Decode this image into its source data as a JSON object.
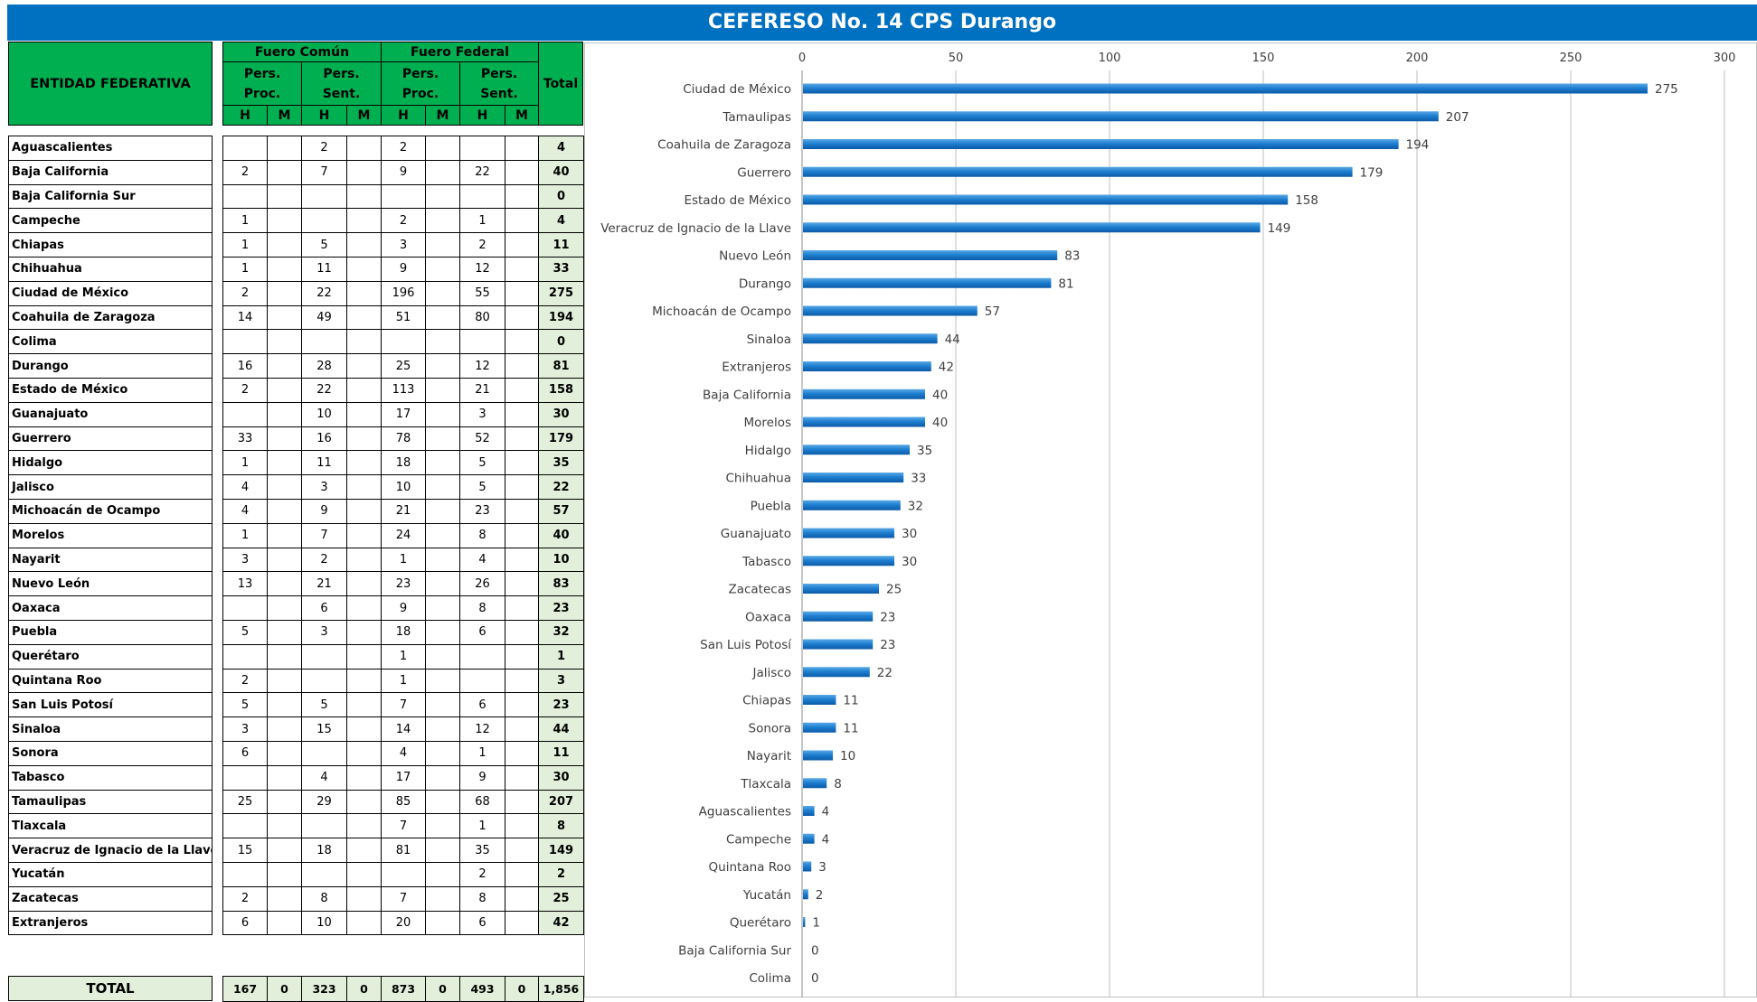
{
  "title": "CEFERESO No. 14 CPS Durango",
  "table": {
    "entity_header": "ENTIDAD FEDERATIVA",
    "group_headers": [
      "Fuero Común",
      "Fuero Federal"
    ],
    "sub_headers": [
      "Pers. Proc.",
      "Pers. Sent.",
      "Pers. Proc.",
      "Pers. Sent."
    ],
    "sex_headers": [
      "H",
      "M",
      "H",
      "M",
      "H",
      "M",
      "H",
      "M"
    ],
    "total_header": "Total",
    "total_label": "TOTAL",
    "rows": [
      {
        "name": "Aguascalientes",
        "v": [
          "",
          "",
          "2",
          "",
          "2",
          "",
          "",
          ""
        ],
        "total": "4"
      },
      {
        "name": "Baja California",
        "v": [
          "2",
          "",
          "7",
          "",
          "9",
          "",
          "22",
          ""
        ],
        "total": "40"
      },
      {
        "name": "Baja California Sur",
        "v": [
          "",
          "",
          "",
          "",
          "",
          "",
          "",
          ""
        ],
        "total": "0"
      },
      {
        "name": "Campeche",
        "v": [
          "1",
          "",
          "",
          "",
          "2",
          "",
          "1",
          ""
        ],
        "total": "4"
      },
      {
        "name": "Chiapas",
        "v": [
          "1",
          "",
          "5",
          "",
          "3",
          "",
          "2",
          ""
        ],
        "total": "11"
      },
      {
        "name": "Chihuahua",
        "v": [
          "1",
          "",
          "11",
          "",
          "9",
          "",
          "12",
          ""
        ],
        "total": "33"
      },
      {
        "name": "Ciudad de México",
        "v": [
          "2",
          "",
          "22",
          "",
          "196",
          "",
          "55",
          ""
        ],
        "total": "275"
      },
      {
        "name": "Coahuila de Zaragoza",
        "v": [
          "14",
          "",
          "49",
          "",
          "51",
          "",
          "80",
          ""
        ],
        "total": "194"
      },
      {
        "name": "Colima",
        "v": [
          "",
          "",
          "",
          "",
          "",
          "",
          "",
          ""
        ],
        "total": "0"
      },
      {
        "name": "Durango",
        "v": [
          "16",
          "",
          "28",
          "",
          "25",
          "",
          "12",
          ""
        ],
        "total": "81"
      },
      {
        "name": "Estado de México",
        "v": [
          "2",
          "",
          "22",
          "",
          "113",
          "",
          "21",
          ""
        ],
        "total": "158"
      },
      {
        "name": "Guanajuato",
        "v": [
          "",
          "",
          "10",
          "",
          "17",
          "",
          "3",
          ""
        ],
        "total": "30"
      },
      {
        "name": "Guerrero",
        "v": [
          "33",
          "",
          "16",
          "",
          "78",
          "",
          "52",
          ""
        ],
        "total": "179"
      },
      {
        "name": "Hidalgo",
        "v": [
          "1",
          "",
          "11",
          "",
          "18",
          "",
          "5",
          ""
        ],
        "total": "35"
      },
      {
        "name": "Jalisco",
        "v": [
          "4",
          "",
          "3",
          "",
          "10",
          "",
          "5",
          ""
        ],
        "total": "22"
      },
      {
        "name": "Michoacán de Ocampo",
        "v": [
          "4",
          "",
          "9",
          "",
          "21",
          "",
          "23",
          ""
        ],
        "total": "57"
      },
      {
        "name": "Morelos",
        "v": [
          "1",
          "",
          "7",
          "",
          "24",
          "",
          "8",
          ""
        ],
        "total": "40"
      },
      {
        "name": "Nayarit",
        "v": [
          "3",
          "",
          "2",
          "",
          "1",
          "",
          "4",
          ""
        ],
        "total": "10"
      },
      {
        "name": "Nuevo León",
        "v": [
          "13",
          "",
          "21",
          "",
          "23",
          "",
          "26",
          ""
        ],
        "total": "83"
      },
      {
        "name": "Oaxaca",
        "v": [
          "",
          "",
          "6",
          "",
          "9",
          "",
          "8",
          ""
        ],
        "total": "23"
      },
      {
        "name": "Puebla",
        "v": [
          "5",
          "",
          "3",
          "",
          "18",
          "",
          "6",
          ""
        ],
        "total": "32"
      },
      {
        "name": "Querétaro",
        "v": [
          "",
          "",
          "",
          "",
          "1",
          "",
          "",
          ""
        ],
        "total": "1"
      },
      {
        "name": "Quintana Roo",
        "v": [
          "2",
          "",
          "",
          "",
          "1",
          "",
          "",
          ""
        ],
        "total": "3"
      },
      {
        "name": "San Luis Potosí",
        "v": [
          "5",
          "",
          "5",
          "",
          "7",
          "",
          "6",
          ""
        ],
        "total": "23"
      },
      {
        "name": "Sinaloa",
        "v": [
          "3",
          "",
          "15",
          "",
          "14",
          "",
          "12",
          ""
        ],
        "total": "44"
      },
      {
        "name": "Sonora",
        "v": [
          "6",
          "",
          "",
          "",
          "4",
          "",
          "1",
          ""
        ],
        "total": "11"
      },
      {
        "name": "Tabasco",
        "v": [
          "",
          "",
          "4",
          "",
          "17",
          "",
          "9",
          ""
        ],
        "total": "30"
      },
      {
        "name": "Tamaulipas",
        "v": [
          "25",
          "",
          "29",
          "",
          "85",
          "",
          "68",
          ""
        ],
        "total": "207"
      },
      {
        "name": "Tlaxcala",
        "v": [
          "",
          "",
          "",
          "",
          "7",
          "",
          "1",
          ""
        ],
        "total": "8"
      },
      {
        "name": "Veracruz de Ignacio de la Llave",
        "v": [
          "15",
          "",
          "18",
          "",
          "81",
          "",
          "35",
          ""
        ],
        "total": "149"
      },
      {
        "name": "Yucatán",
        "v": [
          "",
          "",
          "",
          "",
          "",
          "",
          "2",
          ""
        ],
        "total": "2"
      },
      {
        "name": "Zacatecas",
        "v": [
          "2",
          "",
          "8",
          "",
          "7",
          "",
          "8",
          ""
        ],
        "total": "25"
      },
      {
        "name": "Extranjeros",
        "v": [
          "6",
          "",
          "10",
          "",
          "20",
          "",
          "6",
          ""
        ],
        "total": "42"
      }
    ],
    "totals": [
      "167",
      "0",
      "323",
      "0",
      "873",
      "0",
      "493",
      "0",
      "1,856"
    ]
  },
  "chart_data": {
    "type": "bar",
    "orientation": "horizontal",
    "bar_color": "#0070c0",
    "xlim": [
      0,
      300
    ],
    "x_ticks": [
      0,
      50,
      100,
      150,
      200,
      250,
      300
    ],
    "grid": true,
    "categories": [
      "Ciudad de México",
      "Tamaulipas",
      "Coahuila de Zaragoza",
      "Guerrero",
      "Estado de México",
      "Veracruz de Ignacio de la Llave",
      "Nuevo León",
      "Durango",
      "Michoacán de Ocampo",
      "Sinaloa",
      "Extranjeros",
      "Baja California",
      "Morelos",
      "Hidalgo",
      "Chihuahua",
      "Puebla",
      "Guanajuato",
      "Tabasco",
      "Zacatecas",
      "Oaxaca",
      "San Luis Potosí",
      "Jalisco",
      "Chiapas",
      "Sonora",
      "Nayarit",
      "Tlaxcala",
      "Aguascalientes",
      "Campeche",
      "Quintana Roo",
      "Yucatán",
      "Querétaro",
      "Baja California Sur",
      "Colima"
    ],
    "values": [
      275,
      207,
      194,
      179,
      158,
      149,
      83,
      81,
      57,
      44,
      42,
      40,
      40,
      35,
      33,
      32,
      30,
      30,
      25,
      23,
      23,
      22,
      11,
      11,
      10,
      8,
      4,
      4,
      3,
      2,
      1,
      0,
      0
    ]
  }
}
